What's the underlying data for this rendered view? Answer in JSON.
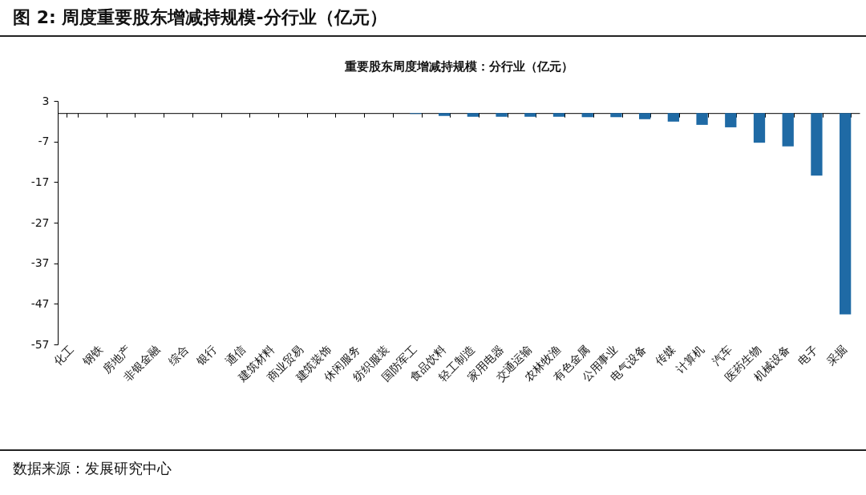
{
  "chart_data": {
    "type": "bar",
    "title": "图 2:  周度重要股东增减持规模-分行业（亿元）",
    "subtitle": "重要股东周度增减持规模：分行业（亿元）",
    "categories": [
      "化工",
      "钢铁",
      "房地产",
      "非银金融",
      "综合",
      "银行",
      "通信",
      "建筑材料",
      "商业贸易",
      "建筑装饰",
      "休闲服务",
      "纺织服装",
      "国防军工",
      "食品饮料",
      "轻工制造",
      "家用电器",
      "交通运输",
      "农林牧渔",
      "有色金属",
      "公用事业",
      "电气设备",
      "传媒",
      "计算机",
      "汽车",
      "医药生物",
      "机械设备",
      "电子",
      "采掘"
    ],
    "values": [
      0,
      0,
      0,
      0,
      0,
      0,
      0,
      0,
      0,
      0,
      0,
      0,
      -0.2,
      -0.7,
      -0.9,
      -0.9,
      -0.9,
      -0.9,
      -1.0,
      -1.0,
      -1.5,
      -2.1,
      -2.9,
      -3.5,
      -7.3,
      -8.2,
      -15.4,
      -49.6
    ],
    "color": "#1f6aa5",
    "ylim": [
      -57,
      3
    ],
    "yticks": [
      3,
      -7,
      -17,
      -27,
      -37,
      -47,
      -57
    ],
    "grid": false,
    "legend": false,
    "annotations": [
      "数据来源：发展研究中心"
    ]
  }
}
